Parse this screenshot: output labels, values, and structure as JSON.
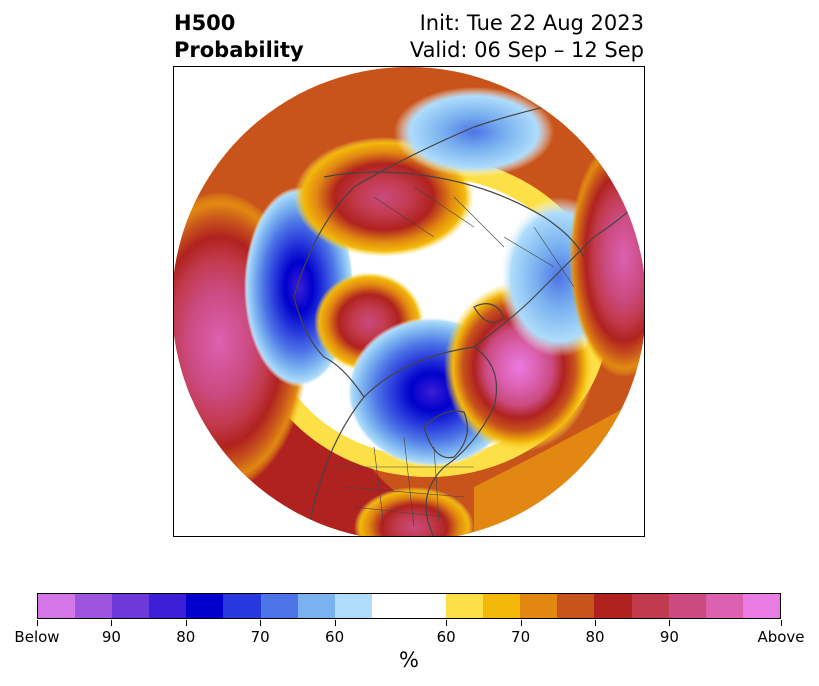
{
  "title": {
    "left_line1": "H500",
    "left_line2": "Probability",
    "right_line1": "Init: Tue 22 Aug 2023",
    "right_line2": "Valid: 06 Sep – 12 Sep"
  },
  "colorbar": {
    "colors": [
      "#d576e8",
      "#9d55e0",
      "#6d39d8",
      "#3c1fd6",
      "#0000cc",
      "#2738dc",
      "#4d74e6",
      "#7ab2f0",
      "#aedcfb",
      "#ffffff",
      "#ffffff",
      "#fde048",
      "#f3b80a",
      "#e18712",
      "#c8541c",
      "#b0221f",
      "#c23a4d",
      "#cb4a80",
      "#dc61b1",
      "#e97be2"
    ],
    "ticks": [
      "Below",
      "90",
      "80",
      "70",
      "60",
      "60",
      "70",
      "80",
      "90",
      "Above"
    ],
    "unit": "%"
  },
  "map": {
    "projection": "north polar stereographic",
    "features": [
      {
        "name": "north-pacific-above-anomaly",
        "category": "Above",
        "color": "#cb4a80"
      },
      {
        "name": "bering-below-anomaly",
        "category": "Below",
        "color": "#2738dc"
      },
      {
        "name": "hudson-bay-below-anomaly",
        "category": "Below",
        "color": "#0000cc"
      },
      {
        "name": "north-atlantic-above-anomaly",
        "category": "Above",
        "color": "#dc61b1"
      },
      {
        "name": "siberia-above-anomaly",
        "category": "Above",
        "color": "#c23a4d"
      },
      {
        "name": "alaska-above-anomaly",
        "category": "Above",
        "color": "#cb4a80"
      },
      {
        "name": "scandinavia-below-anomaly",
        "category": "Below",
        "color": "#4d74e6"
      },
      {
        "name": "gulf-above-anomaly",
        "category": "Above",
        "color": "#c23a4d"
      }
    ]
  }
}
